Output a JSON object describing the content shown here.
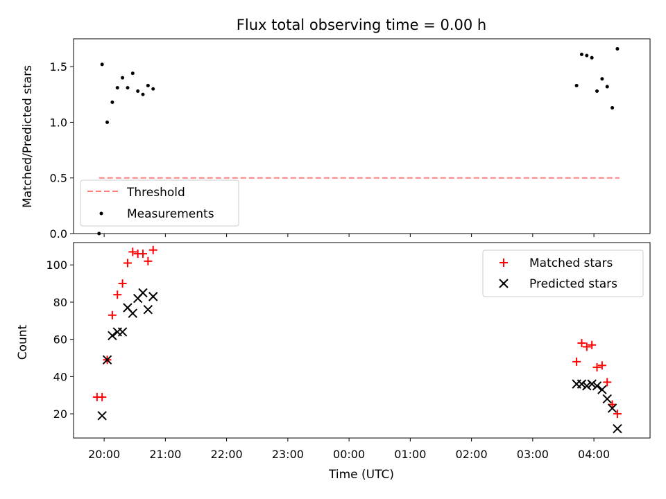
{
  "chart_data": [
    {
      "type": "scatter",
      "title": "Flux total observing time = 0.00 h",
      "xlabel": "",
      "ylabel": "Matched/Predicted stars",
      "ylim": [
        0,
        1.75
      ],
      "xlim": [
        "19:30",
        "04:55"
      ],
      "yticks": [
        "0.0",
        "0.5",
        "1.0",
        "1.5"
      ],
      "legend_position": "lower-left",
      "threshold": {
        "name": "Threshold",
        "value": 0.5,
        "x_start": "19:55",
        "x_end": "04:25",
        "color": "#ff7f7f",
        "style": "dashed"
      },
      "series": [
        {
          "name": "Measurements",
          "color": "#000000",
          "marker": "dot",
          "points": [
            {
              "x": "19:55",
              "y": 0.0
            },
            {
              "x": "19:58",
              "y": 1.52
            },
            {
              "x": "20:03",
              "y": 1.0
            },
            {
              "x": "20:08",
              "y": 1.18
            },
            {
              "x": "20:13",
              "y": 1.31
            },
            {
              "x": "20:18",
              "y": 1.4
            },
            {
              "x": "20:23",
              "y": 1.31
            },
            {
              "x": "20:28",
              "y": 1.44
            },
            {
              "x": "20:33",
              "y": 1.28
            },
            {
              "x": "20:38",
              "y": 1.25
            },
            {
              "x": "20:43",
              "y": 1.33
            },
            {
              "x": "20:48",
              "y": 1.3
            },
            {
              "x": "03:43",
              "y": 1.33
            },
            {
              "x": "03:48",
              "y": 1.61
            },
            {
              "x": "03:53",
              "y": 1.6
            },
            {
              "x": "03:58",
              "y": 1.58
            },
            {
              "x": "04:03",
              "y": 1.28
            },
            {
              "x": "04:08",
              "y": 1.39
            },
            {
              "x": "04:13",
              "y": 1.32
            },
            {
              "x": "04:18",
              "y": 1.13
            },
            {
              "x": "04:23",
              "y": 1.66
            }
          ]
        }
      ]
    },
    {
      "type": "scatter",
      "title": "",
      "xlabel": "Time (UTC)",
      "ylabel": "Count",
      "ylim": [
        7,
        112
      ],
      "xlim": [
        "19:30",
        "04:55"
      ],
      "yticks": [
        "20",
        "40",
        "60",
        "80",
        "100"
      ],
      "xticks": [
        "20:00",
        "21:00",
        "22:00",
        "23:00",
        "00:00",
        "01:00",
        "02:00",
        "03:00",
        "04:00"
      ],
      "legend_position": "upper-right",
      "series": [
        {
          "name": "Matched stars",
          "color": "#ff0000",
          "marker": "plus",
          "points": [
            {
              "x": "19:53",
              "y": 29
            },
            {
              "x": "19:58",
              "y": 29
            },
            {
              "x": "20:03",
              "y": 49
            },
            {
              "x": "20:08",
              "y": 73
            },
            {
              "x": "20:13",
              "y": 84
            },
            {
              "x": "20:18",
              "y": 90
            },
            {
              "x": "20:23",
              "y": 101
            },
            {
              "x": "20:28",
              "y": 107
            },
            {
              "x": "20:33",
              "y": 106
            },
            {
              "x": "20:38",
              "y": 106
            },
            {
              "x": "20:43",
              "y": 102
            },
            {
              "x": "20:48",
              "y": 108
            },
            {
              "x": "03:43",
              "y": 48
            },
            {
              "x": "03:48",
              "y": 58
            },
            {
              "x": "03:53",
              "y": 56
            },
            {
              "x": "03:58",
              "y": 57
            },
            {
              "x": "04:03",
              "y": 45
            },
            {
              "x": "04:08",
              "y": 46
            },
            {
              "x": "04:13",
              "y": 37
            },
            {
              "x": "04:18",
              "y": 25
            },
            {
              "x": "04:23",
              "y": 20
            }
          ]
        },
        {
          "name": "Predicted stars",
          "color": "#000000",
          "marker": "cross",
          "points": [
            {
              "x": "19:58",
              "y": 19
            },
            {
              "x": "20:03",
              "y": 49
            },
            {
              "x": "20:08",
              "y": 62
            },
            {
              "x": "20:13",
              "y": 64
            },
            {
              "x": "20:18",
              "y": 64
            },
            {
              "x": "20:23",
              "y": 77
            },
            {
              "x": "20:28",
              "y": 74
            },
            {
              "x": "20:33",
              "y": 82
            },
            {
              "x": "20:38",
              "y": 85
            },
            {
              "x": "20:43",
              "y": 76
            },
            {
              "x": "20:48",
              "y": 83
            },
            {
              "x": "03:43",
              "y": 36
            },
            {
              "x": "03:48",
              "y": 36
            },
            {
              "x": "03:53",
              "y": 35
            },
            {
              "x": "03:58",
              "y": 36
            },
            {
              "x": "04:03",
              "y": 35
            },
            {
              "x": "04:08",
              "y": 33
            },
            {
              "x": "04:13",
              "y": 28
            },
            {
              "x": "04:18",
              "y": 23
            },
            {
              "x": "04:23",
              "y": 12
            }
          ]
        }
      ]
    }
  ]
}
